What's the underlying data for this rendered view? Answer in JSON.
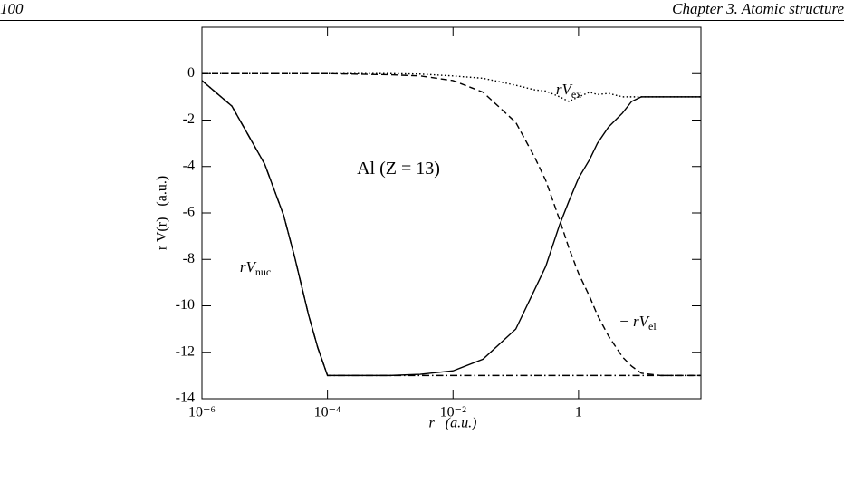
{
  "header": {
    "page_number": "100",
    "chapter": "Chapter 3.  Atomic structure"
  },
  "chart_data": {
    "type": "line",
    "x_label": "r   (a.u.)",
    "y_label": "r V(r)   (a.u.)",
    "xscale": "log",
    "x": [
      1e-06,
      3e-06,
      1e-05,
      2e-05,
      3e-05,
      5e-05,
      7e-05,
      0.0001,
      0.001,
      0.003,
      0.01,
      0.03,
      0.1,
      0.2,
      0.3,
      0.5,
      0.7,
      1,
      1.5,
      2,
      3,
      5,
      7,
      10,
      20,
      50,
      89
    ],
    "series": [
      {
        "color": "#000000",
        "style": "solid",
        "values": [
          -0.3,
          -1.4,
          -3.9,
          -6.1,
          -7.9,
          -10.4,
          -11.8,
          -13.0,
          -13.0,
          -12.95,
          -12.8,
          -12.3,
          -11.0,
          -9.3,
          -8.3,
          -6.5,
          -5.5,
          -4.5,
          -3.7,
          -3.0,
          -2.3,
          -1.7,
          -1.2,
          -1.0,
          -1.0,
          -1.0,
          -1.0
        ]
      },
      {
        "color": "#000000",
        "style": "dashdot",
        "values": [
          -0.3,
          -1.4,
          -3.9,
          -6.1,
          -7.9,
          -10.4,
          -11.8,
          -13.0,
          -13.0,
          -13.0,
          -13.0,
          -13.0,
          -13.0,
          -13.0,
          -13.0,
          -13.0,
          -13.0,
          -13.0,
          -13.0,
          -13.0,
          -13.0,
          -13.0,
          -13.0,
          -13.0,
          -13.0,
          -13.0,
          -13.0
        ]
      },
      {
        "color": "#000000",
        "style": "dashed",
        "values": [
          0,
          0,
          0,
          0,
          0,
          0,
          0,
          0,
          -0.05,
          -0.1,
          -0.3,
          -0.8,
          -2.1,
          -3.6,
          -4.6,
          -6.3,
          -7.5,
          -8.6,
          -9.6,
          -10.4,
          -11.3,
          -12.2,
          -12.6,
          -12.9,
          -13.0,
          -13.0,
          -13.0
        ]
      },
      {
        "color": "#000000",
        "style": "dotted",
        "values": [
          0,
          0,
          0,
          0,
          0,
          0,
          0,
          0,
          0,
          -0.02,
          -0.1,
          -0.2,
          -0.5,
          -0.7,
          -0.75,
          -1.0,
          -1.2,
          -1.0,
          -0.8,
          -0.9,
          -0.85,
          -1.0,
          -1.0,
          -1.0,
          -1.0,
          -1.0,
          -1.0
        ]
      }
    ],
    "xlim": [
      1e-06,
      89
    ],
    "xticks": [
      {
        "value": 1e-06,
        "label": "10⁻⁶"
      },
      {
        "value": 0.0001,
        "label": "10⁻⁴"
      },
      {
        "value": 0.01,
        "label": "10⁻²"
      },
      1
    ],
    "ylim": [
      -14,
      2
    ],
    "yticks": [
      0,
      -2,
      -4,
      -6,
      -8,
      -10,
      -12,
      -14
    ],
    "annotations": [
      {
        "text": "Al (Z = 13)"
      },
      {
        "text": "rV",
        "sub": "ex"
      },
      {
        "text": "rV",
        "sub": "nuc"
      },
      {
        "text": "− rV",
        "sub": "el"
      }
    ]
  }
}
